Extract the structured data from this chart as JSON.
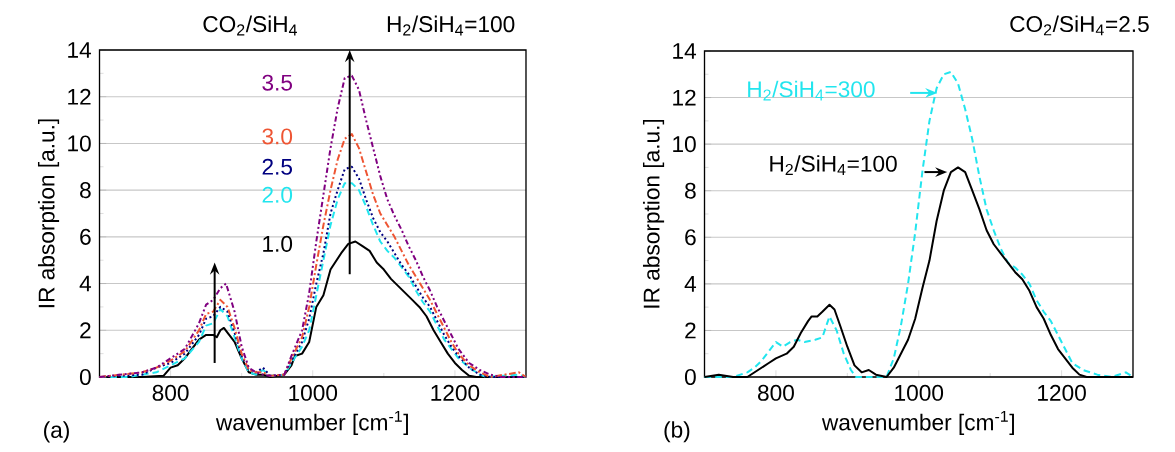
{
  "chart_data": [
    {
      "type": "line",
      "xlabel": "wavenumber [cm$^{-1}$]",
      "ylabel": "IR absorption [a.u.]",
      "legend_title": "CO$_{2}$/SiH$_{4}$",
      "annotations": [
        "H$_{2}$/SiH$_{4}$=100",
        "(a)"
      ],
      "xlim": [
        700,
        1300
      ],
      "ylim": [
        0,
        14
      ],
      "xticks": [
        800,
        1000,
        1200
      ],
      "yticks": [
        0,
        2,
        4,
        6,
        8,
        10,
        12,
        14
      ],
      "grid": "y",
      "series": [
        {
          "name": "1.0",
          "color": "#000000",
          "line_style": "solid",
          "x": [
            700,
            760,
            790,
            800,
            810,
            820,
            830,
            840,
            850,
            860,
            865,
            870,
            875,
            880,
            890,
            900,
            910,
            920,
            930,
            940,
            960,
            970,
            975,
            985,
            995,
            1005,
            1015,
            1025,
            1040,
            1050,
            1060,
            1070,
            1080,
            1090,
            1100,
            1110,
            1120,
            1130,
            1140,
            1150,
            1160,
            1170,
            1180,
            1190,
            1200,
            1210,
            1220,
            1230,
            1300
          ],
          "values": [
            0,
            0,
            0.05,
            0.4,
            0.5,
            0.8,
            1.2,
            1.6,
            1.8,
            1.8,
            1.7,
            2.0,
            2.1,
            1.9,
            1.5,
            0.8,
            0.2,
            0.1,
            0.1,
            0,
            0.1,
            0.5,
            0.9,
            1.0,
            1.5,
            3.0,
            3.5,
            4.6,
            5.3,
            5.7,
            5.8,
            5.6,
            5.4,
            4.9,
            4.6,
            4.2,
            3.9,
            3.6,
            3.3,
            3.0,
            2.6,
            2.0,
            1.5,
            1.0,
            0.6,
            0.3,
            0.05,
            0,
            0
          ]
        },
        {
          "name": "2.0",
          "color": "#22e5ee",
          "line_style": "dashed",
          "x": [
            700,
            740,
            760,
            780,
            800,
            820,
            840,
            850,
            860,
            870,
            880,
            890,
            900,
            910,
            920,
            930,
            940,
            960,
            970,
            985,
            995,
            1005,
            1015,
            1025,
            1035,
            1045,
            1055,
            1065,
            1075,
            1085,
            1095,
            1105,
            1115,
            1125,
            1135,
            1145,
            1155,
            1165,
            1175,
            1185,
            1195,
            1205,
            1220,
            1235,
            1245,
            1290,
            1300
          ],
          "values": [
            0,
            0,
            0.1,
            0.2,
            0.5,
            0.8,
            1.5,
            2.2,
            2.3,
            2.9,
            2.6,
            1.7,
            0.8,
            0.2,
            0.1,
            0.3,
            0.05,
            0.1,
            0.6,
            1.3,
            2.0,
            3.5,
            5.0,
            6.5,
            7.6,
            8.3,
            8.3,
            8.0,
            7.3,
            6.5,
            5.8,
            5.4,
            5.1,
            4.7,
            4.3,
            3.7,
            3.2,
            2.8,
            2.2,
            1.6,
            1.2,
            0.8,
            0.4,
            0.1,
            0,
            0.1,
            0
          ]
        },
        {
          "name": "2.5",
          "color": "#000080",
          "line_style": "dotted",
          "x": [
            700,
            760,
            780,
            800,
            820,
            840,
            850,
            860,
            870,
            880,
            890,
            900,
            910,
            920,
            930,
            940,
            960,
            970,
            985,
            995,
            1005,
            1015,
            1025,
            1035,
            1045,
            1055,
            1065,
            1075,
            1085,
            1095,
            1105,
            1115,
            1125,
            1135,
            1145,
            1155,
            1165,
            1175,
            1185,
            1195,
            1205,
            1220,
            1235,
            1250,
            1300
          ],
          "values": [
            0,
            0.1,
            0.4,
            0.6,
            1.0,
            1.8,
            2.5,
            2.6,
            3.0,
            2.8,
            1.9,
            0.9,
            0.3,
            0.2,
            0.4,
            0.05,
            0.1,
            0.7,
            1.5,
            2.5,
            4.0,
            5.3,
            7.0,
            8.0,
            8.9,
            9.0,
            8.5,
            7.6,
            6.8,
            6.2,
            5.8,
            5.3,
            4.8,
            4.4,
            3.9,
            3.4,
            3.0,
            2.4,
            1.8,
            1.3,
            0.9,
            0.4,
            0.1,
            0,
            0
          ]
        },
        {
          "name": "3.0",
          "color": "#ee5533",
          "line_style": "dashdotted",
          "x": [
            700,
            760,
            780,
            800,
            820,
            840,
            850,
            860,
            870,
            880,
            890,
            900,
            910,
            920,
            930,
            940,
            960,
            970,
            985,
            995,
            1005,
            1015,
            1025,
            1035,
            1045,
            1055,
            1065,
            1075,
            1085,
            1095,
            1105,
            1115,
            1125,
            1135,
            1145,
            1155,
            1165,
            1175,
            1185,
            1195,
            1205,
            1220,
            1235,
            1250,
            1290,
            1300
          ],
          "values": [
            0,
            0.2,
            0.4,
            0.7,
            1.1,
            2.0,
            2.7,
            2.8,
            3.3,
            3.0,
            2.1,
            1.0,
            0.3,
            0.2,
            0.2,
            0.05,
            0.1,
            0.8,
            1.7,
            3.0,
            4.8,
            6.5,
            8.0,
            9.3,
            10.2,
            10.4,
            9.8,
            8.8,
            7.8,
            7.0,
            6.5,
            6.0,
            5.4,
            4.8,
            4.3,
            3.8,
            3.3,
            2.7,
            2.1,
            1.5,
            1.0,
            0.5,
            0.2,
            0,
            0.2,
            0
          ]
        },
        {
          "name": "3.5",
          "color": "#800080",
          "line_style": "dashdotdotted",
          "x": [
            700,
            760,
            780,
            800,
            820,
            840,
            850,
            860,
            870,
            878,
            890,
            900,
            910,
            920,
            930,
            940,
            960,
            970,
            985,
            995,
            1005,
            1015,
            1025,
            1035,
            1045,
            1055,
            1065,
            1075,
            1085,
            1095,
            1105,
            1115,
            1125,
            1135,
            1145,
            1155,
            1165,
            1175,
            1185,
            1195,
            1205,
            1220,
            1235,
            1250,
            1265,
            1300
          ],
          "values": [
            0,
            0.2,
            0.4,
            0.8,
            1.2,
            2.3,
            3.1,
            3.3,
            3.8,
            4.0,
            2.8,
            1.3,
            0.4,
            0.2,
            0.1,
            0.05,
            0.1,
            0.9,
            2.0,
            3.6,
            5.8,
            7.8,
            9.8,
            11.5,
            12.8,
            12.9,
            12.3,
            11.0,
            9.8,
            8.6,
            7.6,
            6.9,
            6.3,
            5.6,
            5.0,
            4.3,
            3.7,
            3.0,
            2.4,
            1.8,
            1.2,
            0.6,
            0.3,
            0.1,
            0,
            0
          ]
        }
      ]
    },
    {
      "type": "line",
      "xlabel": "wavenumber [cm$^{-1}$]",
      "ylabel": "IR absorption [a.u.]",
      "annotations": [
        "CO$_{2}$/SiH$_{4}$=2.5",
        "(b)"
      ],
      "legend": "top left",
      "xlim": [
        700,
        1300
      ],
      "ylim": [
        0,
        14
      ],
      "xticks": [
        800,
        1000,
        1200
      ],
      "yticks": [
        0,
        2,
        4,
        6,
        8,
        10,
        12,
        14
      ],
      "grid": "y",
      "series": [
        {
          "name": "H$_{2}$/SiH$_{4}$=300",
          "color": "#22e5ee",
          "line_style": "dashed",
          "x": [
            700,
            740,
            760,
            770,
            780,
            790,
            800,
            810,
            820,
            830,
            840,
            855,
            865,
            875,
            885,
            895,
            905,
            912,
            955,
            965,
            975,
            985,
            995,
            1005,
            1015,
            1025,
            1035,
            1045,
            1055,
            1065,
            1075,
            1085,
            1095,
            1105,
            1115,
            1125,
            1135,
            1145,
            1155,
            1165,
            1175,
            1185,
            1195,
            1205,
            1215,
            1230,
            1250,
            1270,
            1290,
            1300
          ],
          "values": [
            0,
            0,
            0.2,
            0.4,
            0.7,
            1.1,
            1.5,
            1.3,
            1.5,
            1.6,
            1.5,
            1.6,
            1.7,
            2.6,
            2.0,
            1.0,
            0.3,
            0,
            0,
            0.8,
            2.2,
            4.0,
            6.2,
            8.8,
            11.0,
            12.4,
            13.0,
            13.1,
            12.6,
            11.5,
            10.2,
            8.6,
            7.2,
            6.3,
            5.5,
            4.9,
            4.7,
            4.4,
            4.0,
            3.3,
            2.8,
            2.4,
            1.8,
            1.2,
            0.6,
            0.3,
            0.1,
            0,
            0.2,
            0
          ]
        },
        {
          "name": "H$_{2}$/SiH$_{4}$=100",
          "color": "#000000",
          "line_style": "solid",
          "x": [
            700,
            720,
            740,
            760,
            770,
            780,
            790,
            800,
            815,
            825,
            835,
            845,
            850,
            858,
            865,
            875,
            882,
            890,
            900,
            910,
            920,
            930,
            940,
            955,
            965,
            975,
            985,
            995,
            1005,
            1015,
            1025,
            1035,
            1045,
            1055,
            1065,
            1075,
            1085,
            1095,
            1105,
            1115,
            1125,
            1135,
            1145,
            1155,
            1165,
            1175,
            1185,
            1195,
            1205,
            1215,
            1225,
            1235,
            1300
          ],
          "values": [
            0,
            0.1,
            0,
            0,
            0.2,
            0.4,
            0.6,
            0.8,
            1.0,
            1.3,
            1.9,
            2.4,
            2.6,
            2.6,
            2.8,
            3.1,
            2.9,
            2.2,
            1.3,
            0.5,
            0.2,
            0.3,
            0.1,
            0,
            0.4,
            1.0,
            1.6,
            2.5,
            3.8,
            5.0,
            6.7,
            8.0,
            8.8,
            9.0,
            8.8,
            8.0,
            7.2,
            6.3,
            5.7,
            5.3,
            4.9,
            4.5,
            4.2,
            3.7,
            3.0,
            2.5,
            1.8,
            1.2,
            0.8,
            0.4,
            0.1,
            0,
            0
          ]
        }
      ]
    }
  ]
}
